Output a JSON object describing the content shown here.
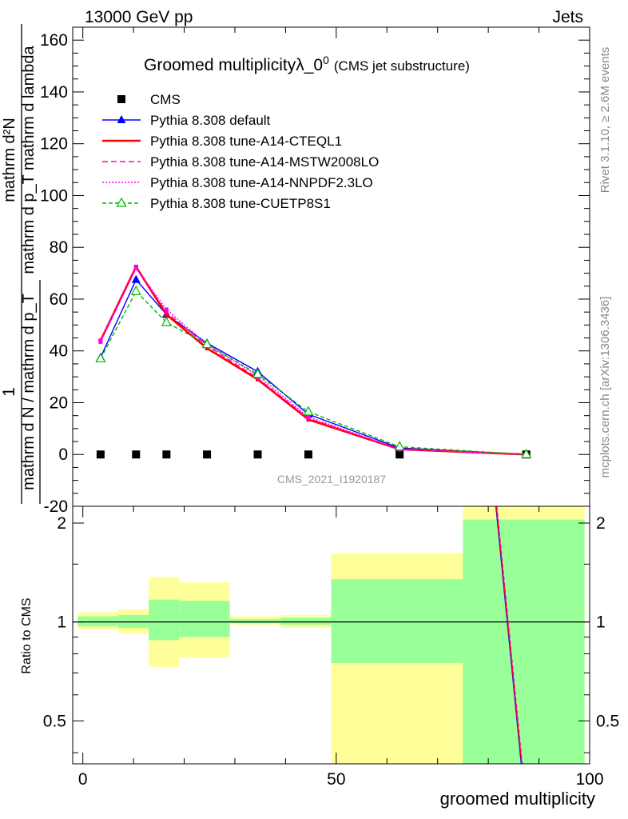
{
  "header": {
    "energy": "13000 GeV pp",
    "category": "Jets"
  },
  "side": {
    "rivet": "Rivet 3.1.10, ≥ 2.6M events",
    "site": "mcplots.cern.ch [arXiv:1306.3436]"
  },
  "chart_data": [
    {
      "type": "line",
      "panel": "main",
      "title": "Groomed multiplicityλ_0",
      "title_sup": "0",
      "subtitle": "(CMS jet substructure)",
      "analysis_label": "CMS_2021_I1920187",
      "ylabel": "mathrm dN / mathrm d p_T mathrm d lambda",
      "ylabel_parts": {
        "one": "1",
        "denominator": "mathrm d N / mathrm d p_T",
        "numerator_top": "mathrm d²N",
        "numerator_bottom": "mathrm d p_T mathrm d lambda"
      },
      "xlim": [
        -2,
        100
      ],
      "ylim": [
        -20,
        165
      ],
      "yticks": [
        -20,
        0,
        20,
        40,
        60,
        80,
        100,
        120,
        140,
        160
      ],
      "x": [
        3.5,
        10.5,
        16.5,
        24.5,
        34.5,
        44.5,
        62.5,
        87.5
      ],
      "series": [
        {
          "name": "CMS",
          "color": "#000000",
          "marker": "square",
          "values": [
            0,
            0,
            0,
            0,
            0,
            0,
            0,
            0
          ]
        },
        {
          "name": "Pythia 8.308 default",
          "color": "#0000ff",
          "marker": "triangle",
          "dash": "",
          "values": [
            37.5,
            67.5,
            54.0,
            43.0,
            32.0,
            15.5,
            2.5,
            0
          ]
        },
        {
          "name": "Pythia 8.308 tune-A14-CTEQL1",
          "color": "#ff0000",
          "marker": "none",
          "dash": "",
          "values": [
            44.0,
            72.5,
            54.0,
            41.0,
            29.0,
            13.5,
            2.0,
            0
          ]
        },
        {
          "name": "Pythia 8.308 tune-A14-MSTW2008LO",
          "color": "#ff00aa",
          "marker": "none",
          "dash": "7,4",
          "values": [
            44.0,
            72.0,
            55.0,
            42.0,
            29.5,
            14.0,
            2.0,
            0
          ]
        },
        {
          "name": "Pythia 8.308 tune-A14-NNPDF2.3LO",
          "color": "#ff00ff",
          "marker": "none",
          "dash": "2,2",
          "values": [
            43.5,
            72.0,
            56.0,
            42.5,
            30.5,
            14.5,
            2.0,
            0
          ]
        },
        {
          "name": "Pythia 8.308 tune-CUETP8S1",
          "color": "#00bb00",
          "marker": "open-triangle",
          "dash": "5,3",
          "values": [
            37.0,
            63.0,
            51.0,
            42.5,
            31.0,
            16.5,
            3.0,
            0
          ]
        }
      ]
    },
    {
      "type": "area",
      "panel": "ratio",
      "ylabel": "Ratio to CMS",
      "xlabel": "groomed multiplicity",
      "xlim": [
        -2,
        100
      ],
      "ylim": [
        0.37,
        2.25
      ],
      "yscale": "log",
      "yticks": [
        0.5,
        1,
        2
      ],
      "xticks": [
        0,
        50,
        100
      ],
      "reference_line": 1,
      "bins": [
        {
          "lo": -1,
          "hi": 7,
          "green": [
            0.97,
            1.04
          ],
          "yellow": [
            0.95,
            1.07
          ]
        },
        {
          "lo": 7,
          "hi": 13,
          "green": [
            0.96,
            1.05
          ],
          "yellow": [
            0.92,
            1.09
          ]
        },
        {
          "lo": 13,
          "hi": 19,
          "green": [
            0.88,
            1.17
          ],
          "yellow": [
            0.73,
            1.37
          ]
        },
        {
          "lo": 19,
          "hi": 29,
          "green": [
            0.9,
            1.16
          ],
          "yellow": [
            0.78,
            1.32
          ]
        },
        {
          "lo": 29,
          "hi": 39,
          "green": [
            0.99,
            1.02
          ],
          "yellow": [
            0.98,
            1.04
          ]
        },
        {
          "lo": 39,
          "hi": 49,
          "green": [
            0.98,
            1.03
          ],
          "yellow": [
            0.96,
            1.05
          ]
        },
        {
          "lo": 49,
          "hi": 75,
          "green": [
            0.75,
            1.35
          ],
          "yellow": [
            0.37,
            1.62
          ]
        },
        {
          "lo": 75,
          "hi": 99,
          "green": [
            0.37,
            2.05
          ],
          "yellow": [
            0.37,
            2.25
          ]
        }
      ],
      "colors": {
        "green": "#99ff99",
        "yellow": "#ffff99"
      },
      "mc_ratio_lines": {
        "x": [
          81.5,
          86.5
        ],
        "y": [
          2.25,
          0.37
        ],
        "colors": [
          "#0000ff",
          "#ff0000",
          "#ff00aa"
        ]
      }
    }
  ]
}
